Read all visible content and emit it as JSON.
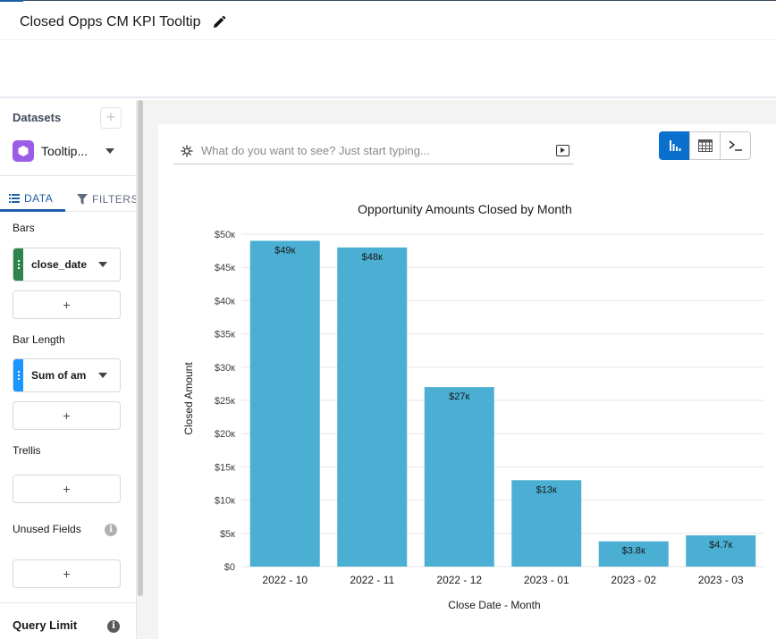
{
  "header": {
    "title": "Closed Opps CM KPI Tooltip"
  },
  "sidebar": {
    "datasets_label": "Datasets",
    "add_dataset_label": "+",
    "dataset_name": "Tooltip...",
    "tabs": {
      "data": "DATA",
      "filters": "FILTERS"
    },
    "bars_label": "Bars",
    "bars_field": "close_date",
    "bar_length_label": "Bar Length",
    "bar_length_field": "Sum of amount",
    "trellis_label": "Trellis",
    "unused_fields_label": "Unused Fields",
    "add_label": "+",
    "query_limit_label": "Query Limit",
    "info_glyph": "i",
    "colors": {
      "bars_pill": "#2e844a",
      "measure_pill": "#1b96ff",
      "dataset_icon": "#9b5de5"
    }
  },
  "search": {
    "placeholder": "What do you want to see? Just start typing..."
  },
  "view_toggle": {
    "selected": "chart",
    "options": [
      "chart-icon",
      "table-icon",
      "query-icon"
    ]
  },
  "chart_data": {
    "type": "bar",
    "title": "Opportunity Amounts Closed by Month",
    "xlabel": "Close Date - Month",
    "ylabel": "Closed Amount",
    "categories": [
      "2022 - 10",
      "2022 - 11",
      "2022 - 12",
      "2023 - 01",
      "2023 - 02",
      "2023 - 03"
    ],
    "values": [
      49000,
      48000,
      27000,
      13000,
      3800,
      4700
    ],
    "data_labels": [
      "$49к",
      "$48к",
      "$27к",
      "$13к",
      "$3.8к",
      "$4.7к"
    ],
    "ylim": [
      0,
      50000
    ],
    "yticks": [
      0,
      5000,
      10000,
      15000,
      20000,
      25000,
      30000,
      35000,
      40000,
      45000,
      50000
    ],
    "ytick_labels": [
      "$0",
      "$5к",
      "$10к",
      "$15к",
      "$20к",
      "$25к",
      "$30к",
      "$35к",
      "$40к",
      "$45к",
      "$50к"
    ],
    "grid": true,
    "bar_color": "#4bafd3"
  }
}
